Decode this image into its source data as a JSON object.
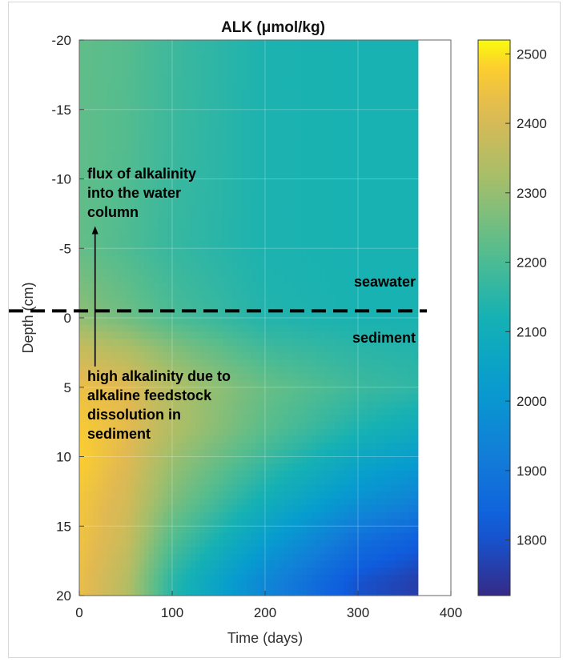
{
  "chart_data": {
    "type": "heatmap",
    "title": "ALK (μmol/kg)",
    "xlabel": "Time (days)",
    "ylabel": "Depth (cm)",
    "xlim": [
      0,
      400
    ],
    "ylim": [
      -20,
      20
    ],
    "data_extent_x": [
      0,
      365
    ],
    "y_reversed": true,
    "x_ticks": [
      "0",
      "100",
      "200",
      "300",
      "400"
    ],
    "y_ticks": [
      "-20",
      "-15",
      "-10",
      "-5",
      "0",
      "5",
      "10",
      "15",
      "20"
    ],
    "colorbar": {
      "colormap": "parula",
      "range": [
        1720,
        2520
      ],
      "ticks": [
        "1800",
        "1900",
        "2000",
        "2100",
        "2200",
        "2300",
        "2400",
        "2500"
      ]
    },
    "approx_values_umol_per_kg": {
      "depths_cm": [
        -20,
        -10,
        -5,
        0,
        2,
        5,
        8,
        10,
        13,
        16,
        19
      ],
      "times_days": [
        0,
        50,
        100,
        200,
        300,
        365
      ],
      "grid": [
        [
          2230,
          2215,
          2180,
          2130,
          2125,
          2125
        ],
        [
          2230,
          2210,
          2175,
          2130,
          2125,
          2125
        ],
        [
          2235,
          2205,
          2170,
          2130,
          2125,
          2125
        ],
        [
          2290,
          2250,
          2200,
          2140,
          2125,
          2125
        ],
        [
          2370,
          2330,
          2270,
          2180,
          2150,
          2140
        ],
        [
          2440,
          2420,
          2340,
          2240,
          2180,
          2160
        ],
        [
          2470,
          2430,
          2340,
          2220,
          2130,
          2090
        ],
        [
          2480,
          2420,
          2310,
          2180,
          2070,
          2030
        ],
        [
          2460,
          2400,
          2270,
          2110,
          1990,
          1940
        ],
        [
          2450,
          2380,
          2210,
          2030,
          1880,
          1830
        ],
        [
          2440,
          2350,
          2150,
          1950,
          1800,
          1760
        ]
      ]
    },
    "annotations": [
      {
        "text_lines": [
          "flux of alkalinity",
          "into the water",
          "column"
        ]
      },
      {
        "text_lines": [
          "high alkalinity due to",
          "alkaline feedstock",
          "dissolution in",
          "sediment"
        ]
      },
      {
        "text": "seawater"
      },
      {
        "text": "sediment"
      }
    ],
    "interface_line": {
      "depth_cm": -0.5,
      "style": "dashed"
    },
    "grid": true
  }
}
